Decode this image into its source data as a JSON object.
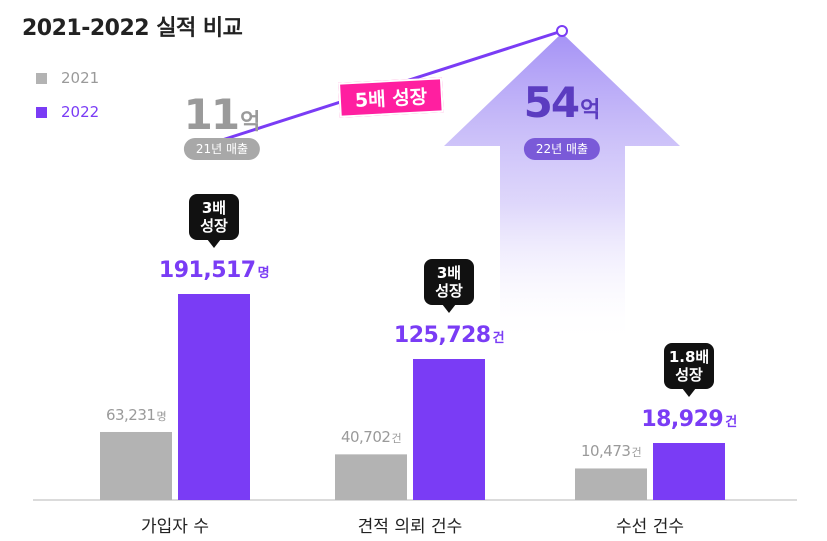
{
  "chart_data": {
    "type": "bar",
    "title": "2021-2022 실적 비교",
    "categories": [
      "가입자 수",
      "견적 의뢰 건수",
      "수선 건수"
    ],
    "series": [
      {
        "name": "2021",
        "color": "#b3b3b3",
        "values": [
          63231,
          40702,
          10473
        ],
        "labels": [
          "63,231",
          "40,702",
          "10,473"
        ]
      },
      {
        "name": "2022",
        "color": "#7a3cf5",
        "values": [
          191517,
          125728,
          18929
        ],
        "labels": [
          "191,517",
          "125,728",
          "18,929"
        ]
      }
    ],
    "units": [
      "명",
      "건",
      "건"
    ],
    "growth_badges": [
      {
        "line1": "3배",
        "line2": "성장"
      },
      {
        "line1": "3배",
        "line2": "성장"
      },
      {
        "line1": "1.8배",
        "line2": "성장"
      }
    ],
    "revenue": {
      "y2021": {
        "value": 11,
        "unit": "억",
        "label": "21년 매출"
      },
      "y2022": {
        "value": 54,
        "unit": "억",
        "label": "22년 매출"
      },
      "growth_label": "5배 성장"
    },
    "legend_position": "top-left",
    "grid": false
  }
}
